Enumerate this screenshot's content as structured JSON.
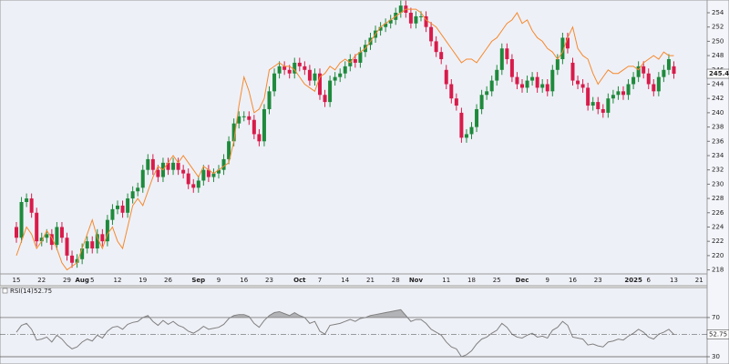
{
  "chart_data": [
    {
      "type": "candlestick",
      "categories": [
        "15",
        null,
        null,
        null,
        null,
        "22",
        null,
        null,
        null,
        null,
        "29",
        null,
        null,
        "Aug",
        null,
        "5",
        null,
        null,
        null,
        null,
        "12",
        null,
        null,
        null,
        null,
        "19",
        null,
        null,
        null,
        null,
        "26",
        null,
        null,
        null,
        null,
        null,
        "Sep",
        null,
        null,
        null,
        "9",
        null,
        null,
        null,
        null,
        "16",
        null,
        null,
        null,
        null,
        "23",
        null,
        null,
        null,
        null,
        null,
        "Oct",
        null,
        null,
        null,
        "7",
        null,
        null,
        null,
        null,
        "14",
        null,
        null,
        null,
        null,
        "21",
        null,
        null,
        null,
        null,
        "28",
        null,
        null,
        null,
        "Nov",
        null,
        null,
        null,
        null,
        null,
        "11",
        null,
        null,
        null,
        null,
        "18",
        null,
        null,
        null,
        null,
        "25",
        null,
        null,
        null,
        null,
        "Dec",
        null,
        null,
        null,
        null,
        "9",
        null,
        null,
        null,
        null,
        "16",
        null,
        null,
        null,
        null,
        "23",
        null,
        null,
        null,
        null,
        null,
        null,
        "2025",
        null,
        null,
        "6",
        null,
        null,
        null,
        null,
        "13",
        null,
        null,
        null,
        null,
        "21"
      ],
      "open": [
        224,
        222.5,
        227.5,
        228,
        226,
        222,
        222.5,
        223,
        221.5,
        224,
        222.5,
        220,
        219,
        219.5,
        221,
        222,
        221,
        223,
        222,
        225,
        226.5,
        227,
        226,
        228,
        229,
        229.5,
        232,
        233.5,
        232,
        231,
        233,
        232,
        233,
        232,
        231.5,
        230,
        229.5,
        230.5,
        232,
        231,
        231.5,
        232,
        233.5,
        236,
        238.5,
        239.5,
        239.5,
        239,
        237,
        236,
        240.5,
        243,
        245.5,
        246.5,
        246,
        245.5,
        247,
        246.5,
        246,
        244.5,
        245.5,
        242.5,
        241.5,
        244.5,
        245,
        245.5,
        246.5,
        247.5,
        247,
        248.5,
        249.5,
        250.5,
        251.5,
        252,
        252.5,
        253,
        254,
        255,
        254,
        252.5,
        253.5,
        253.5,
        252,
        250,
        248.5,
        246,
        244,
        242,
        240,
        236.5,
        237,
        238,
        240.5,
        242.5,
        243,
        244.5,
        246,
        249,
        247.5,
        245,
        244,
        243.5,
        244.5,
        245,
        243.5,
        244,
        243,
        246,
        247.5,
        250.5,
        247,
        244.5,
        244,
        243.5,
        241,
        241.5,
        240.5,
        240,
        242,
        242.5,
        243,
        242.5,
        244,
        245,
        246.5,
        245.5,
        244,
        243,
        245,
        246,
        246.5,
        null,
        null,
        null,
        null,
        null
      ],
      "high": [
        224.7,
        228.2,
        228.7,
        228.7,
        226.7,
        223.2,
        223.7,
        223.7,
        224.7,
        224.7,
        223.2,
        220.7,
        220.2,
        221.7,
        222.7,
        222.7,
        223.7,
        223.7,
        225.7,
        227.2,
        227.7,
        227.7,
        228.7,
        229.7,
        230.2,
        232.7,
        234.2,
        234.2,
        232.7,
        233.7,
        233.7,
        233.7,
        233.7,
        232.7,
        232.2,
        230.7,
        231.2,
        232.7,
        232.7,
        232.2,
        232.7,
        234.2,
        236.7,
        239.2,
        240.2,
        240.2,
        240.2,
        239.7,
        237.7,
        241.2,
        243.7,
        246.2,
        247.2,
        247.2,
        246.7,
        247.7,
        247.7,
        247.2,
        246.7,
        246.2,
        246.2,
        243.2,
        245.2,
        245.7,
        246.2,
        247.2,
        248.2,
        248.2,
        249.2,
        250.2,
        251.2,
        252.2,
        252.7,
        253.2,
        253.7,
        254.7,
        255.7,
        255.7,
        254.7,
        254.2,
        254.2,
        254.2,
        252.7,
        250.7,
        249.2,
        246.7,
        244.7,
        242.7,
        240.7,
        237.7,
        238.7,
        241.2,
        243.2,
        243.7,
        245.2,
        246.7,
        249.7,
        249.7,
        248.2,
        245.7,
        244.7,
        245.2,
        245.7,
        245.7,
        244.7,
        244.7,
        246.7,
        248.2,
        251.2,
        251.2,
        247.7,
        245.2,
        244.7,
        244.2,
        242.2,
        242.2,
        241.2,
        242.7,
        243.2,
        243.7,
        243.7,
        244.7,
        245.7,
        247.2,
        247.2,
        246.2,
        244.7,
        245.7,
        246.7,
        248.2,
        247.2,
        null,
        null,
        null,
        null,
        null
      ],
      "low": [
        221.8,
        221.8,
        226.8,
        225.3,
        221.3,
        221.3,
        221.8,
        220.8,
        220.8,
        221.8,
        219.3,
        218.3,
        218.3,
        218.8,
        220.3,
        220.3,
        220.3,
        221.3,
        221.3,
        224.3,
        225.8,
        225.3,
        225.3,
        227.3,
        228.3,
        228.8,
        231.3,
        231.3,
        230.3,
        230.3,
        231.3,
        231.3,
        231.3,
        230.8,
        229.3,
        228.8,
        228.8,
        229.8,
        230.3,
        230.3,
        230.8,
        231.3,
        232.8,
        235.3,
        237.8,
        238.8,
        238.3,
        236.3,
        235.3,
        235.3,
        239.8,
        242.3,
        244.8,
        245.3,
        244.8,
        244.8,
        245.8,
        245.3,
        243.8,
        243.8,
        241.8,
        240.8,
        240.8,
        243.8,
        244.3,
        244.8,
        245.8,
        246.3,
        246.3,
        247.8,
        248.8,
        249.8,
        250.8,
        251.3,
        251.8,
        252.3,
        253.3,
        253.3,
        251.8,
        251.8,
        252.8,
        251.3,
        249.3,
        247.8,
        246.8,
        243.3,
        241.3,
        240.3,
        235.8,
        235.8,
        236.3,
        237.3,
        239.8,
        241.8,
        242.3,
        243.8,
        245.3,
        246.8,
        244.3,
        243.3,
        242.8,
        242.8,
        243.8,
        242.8,
        242.8,
        242.3,
        242.3,
        245.3,
        246.8,
        248.3,
        243.8,
        243.3,
        242.8,
        240.3,
        240.3,
        239.8,
        239.3,
        239.3,
        241.3,
        241.8,
        241.8,
        241.8,
        243.3,
        244.3,
        244.8,
        243.3,
        242.3,
        242.3,
        244.3,
        245.3,
        244.76,
        null,
        null,
        null,
        null,
        null
      ],
      "close": [
        222.5,
        227.5,
        228,
        226,
        222,
        222.5,
        223,
        221.5,
        224,
        222.5,
        220,
        219,
        219.5,
        221,
        222,
        221,
        223,
        222,
        225,
        226.5,
        227,
        226,
        228,
        229,
        229.5,
        232,
        233.5,
        232,
        231,
        233,
        232,
        233,
        232,
        231.5,
        230,
        229.5,
        230.5,
        232,
        231,
        231.5,
        232,
        233.5,
        236,
        238.5,
        239.5,
        239.5,
        239,
        237,
        236,
        240.5,
        243,
        245.5,
        246.5,
        246,
        245.5,
        247,
        246.5,
        246,
        244.5,
        245.5,
        242.5,
        241.5,
        244.5,
        245,
        245.5,
        246.5,
        247.5,
        247,
        248.5,
        249.5,
        250.5,
        251.5,
        252,
        252.5,
        253,
        254,
        255,
        254,
        252.5,
        253.5,
        253.5,
        252,
        250,
        248.5,
        247.5,
        244,
        242,
        241,
        236.5,
        237,
        238,
        240.5,
        242.5,
        243,
        244.5,
        246,
        249,
        247.5,
        245,
        244,
        243.5,
        244.5,
        245,
        243.5,
        244,
        243,
        246,
        247.5,
        250.5,
        249,
        244.5,
        244,
        243.5,
        241,
        241.5,
        240.5,
        240,
        242,
        242.5,
        243,
        242.5,
        244,
        245,
        246.5,
        245.5,
        244,
        243,
        245,
        246,
        247.5,
        245.46,
        null,
        null,
        null,
        null,
        null
      ],
      "color_up": "#1e8a3c",
      "color_down": "#d81b4a",
      "series": [
        {
          "color": "#f58a2e",
          "values": [
            220,
            222,
            224,
            223,
            221,
            222,
            223.5,
            222.5,
            221,
            219,
            218,
            218.5,
            219,
            221,
            223,
            225,
            222.5,
            221,
            223,
            224,
            222,
            221,
            224,
            227,
            228,
            227,
            229,
            231,
            232.5,
            232,
            233,
            234,
            233,
            234,
            233,
            232,
            231,
            232.5,
            232,
            231.5,
            232,
            232.5,
            233,
            236,
            241,
            245,
            243,
            240,
            240.5,
            242,
            246,
            246.5,
            247,
            246.5,
            246.5,
            246,
            245,
            244,
            243.5,
            243,
            245,
            245.5,
            246.5,
            246,
            247,
            247.5,
            247,
            248,
            248.5,
            249,
            250,
            251,
            252,
            252.5,
            253,
            253.5,
            254,
            254.5,
            254.5,
            254.5,
            254,
            253,
            252.5,
            252,
            251,
            250,
            249,
            248,
            247,
            247.5,
            247.5,
            247,
            248,
            249,
            250,
            250.5,
            251.5,
            252.5,
            253,
            254,
            252.5,
            253,
            251.5,
            250.5,
            250,
            249,
            248.5,
            247.5,
            248.5,
            250.5,
            252,
            249,
            248,
            247.5,
            245.5,
            244,
            245,
            246,
            245.5,
            245.5,
            246,
            246.5,
            246.5,
            246,
            247,
            247.5,
            248,
            247.5,
            248.5,
            248,
            248,
            null,
            null,
            null,
            null,
            null
          ]
        }
      ],
      "ylim": [
        217.5,
        256
      ],
      "yticks": [
        218,
        220,
        222,
        224,
        226,
        228,
        230,
        232,
        234,
        236,
        238,
        240,
        242,
        244,
        246,
        248,
        250,
        252,
        254
      ]
    },
    {
      "type": "line",
      "title": "RSI(14)",
      "color": "#808080",
      "values": [
        55,
        62,
        64,
        58,
        47,
        48,
        50,
        45,
        52,
        48,
        42,
        38,
        40,
        45,
        48,
        46,
        52,
        49,
        56,
        60,
        61,
        58,
        63,
        65,
        66,
        70,
        72,
        66,
        62,
        67,
        63,
        66,
        62,
        60,
        56,
        54,
        57,
        61,
        58,
        59,
        60,
        63,
        69,
        72,
        73,
        73,
        71,
        64,
        60,
        67,
        72,
        75,
        76,
        74,
        72,
        75,
        72,
        70,
        64,
        66,
        56,
        53,
        62,
        63,
        64,
        66,
        68,
        66,
        69,
        70,
        72,
        73,
        74,
        75,
        76,
        77,
        78,
        72,
        66,
        68,
        68,
        64,
        58,
        55,
        52,
        45,
        40,
        38,
        30,
        32,
        36,
        43,
        48,
        50,
        54,
        57,
        64,
        60,
        53,
        50,
        49,
        52,
        54,
        50,
        51,
        49,
        57,
        60,
        66,
        62,
        50,
        49,
        48,
        42,
        43,
        41,
        40,
        45,
        46,
        48,
        47,
        51,
        54,
        58,
        55,
        50,
        48,
        53,
        55,
        58,
        52.75,
        null,
        null,
        null,
        null,
        null
      ],
      "ylim": [
        22,
        95
      ],
      "yticks": [
        30,
        70
      ]
    }
  ]
}
